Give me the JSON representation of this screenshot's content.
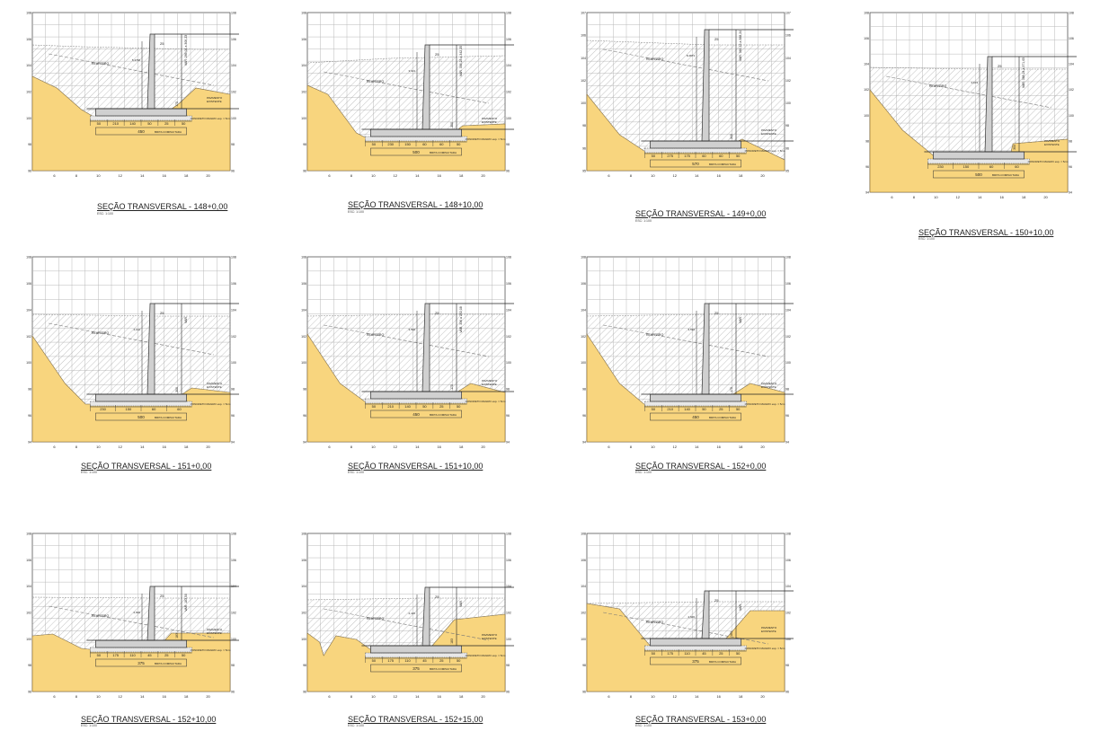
{
  "scale_note": "ESC: 1:100",
  "x_ticks": [
    "6",
    "8",
    "10",
    "12",
    "14",
    "16",
    "18",
    "20"
  ],
  "y_ticks": [
    "96",
    "98",
    "100",
    "102",
    "104",
    "106",
    "108"
  ],
  "y_ticks_low": [
    "94",
    "96",
    "98",
    "100",
    "102",
    "104",
    "106",
    "108"
  ],
  "y_ticks_149": [
    "95",
    "96",
    "98",
    "100",
    "102",
    "104",
    "106",
    "107"
  ],
  "labels": {
    "reaterro": "REATERRO",
    "concreto": "CONCRETO MAGRO esp. = 5cm",
    "brita": "BRITA COMPACTADA",
    "pavimento_1": "PAVIMENTO",
    "pavimento_2": "EXISTENTE",
    "var": "VAR."
  },
  "colors": {
    "soil": "#f8d57e",
    "grid": "#b9b9b9",
    "fill": "#d0d0d0"
  },
  "sections": [
    {
      "caption": "SEÇÃO TRANSVERSAL - 148+0,00",
      "dims": [
        "50",
        "210",
        "140",
        "50",
        "25",
        "50"
      ],
      "total": "450",
      "var": "VAR. 266,04 a 306,23",
      "wall": "25",
      "stem": "175",
      "stem_left": "5,4768"
    },
    {
      "caption": "SEÇÃO TRANSVERSAL - 148+10,00",
      "dims": [
        "50",
        "230",
        "150",
        "60",
        "60",
        "50"
      ],
      "total": "500",
      "var": "VAR. 306,23 a 342,25",
      "wall": "25",
      "stem": "300",
      "stem_left": "3,913"
    },
    {
      "caption": "SEÇÃO TRANSVERSAL - 149+0,00",
      "dims": [
        "50",
        "275",
        "175",
        "60",
        "60",
        "50"
      ],
      "total": "570",
      "var": "VAR. 360,13 a 388,24",
      "wall": "25",
      "stem": "340",
      "stem_left": "8,4873"
    },
    {
      "caption": "SEÇÃO TRANSVERSAL - 150+10,00",
      "dims": [
        "230",
        "150",
        "60",
        "60"
      ],
      "total": "500",
      "var": "VAR. 388,24 a 371,05",
      "wall": "25",
      "stem": "300",
      "stem_left": "4,103"
    },
    {
      "caption": "SEÇÃO TRANSVERSAL - 151+0,00",
      "dims": [
        "230",
        "150",
        "60",
        "60"
      ],
      "total": "500",
      "var": "VAR.",
      "wall": "25",
      "stem": "300",
      "stem_left": "4,102"
    },
    {
      "caption": "SEÇÃO TRANSVERSAL - 151+10,00",
      "dims": [
        "50",
        "210",
        "140",
        "50",
        "25",
        "50"
      ],
      "total": "450",
      "var": "VAR. 336 a 292,08",
      "wall": "25",
      "stem": "175",
      "stem_left": "3,596"
    },
    {
      "caption": "SEÇÃO TRANSVERSAL - 152+0,00",
      "dims": [
        "50",
        "210",
        "140",
        "50",
        "25",
        "50"
      ],
      "total": "450",
      "var": "VAR.",
      "wall": "25",
      "stem": "175",
      "stem_left": "3,596"
    },
    {
      "caption": "SEÇÃO TRANSVERSAL - 152+10,00",
      "dims": [
        "50",
        "175",
        "110",
        "45",
        "25",
        "50"
      ],
      "total": "375",
      "var": "VAR. 183,50",
      "wall": "25",
      "stem": "183",
      "stem_left": "2,606"
    },
    {
      "caption": "SEÇÃO TRANSVERSAL - 152+15,00",
      "dims": [
        "50",
        "175",
        "110",
        "45",
        "25",
        "50"
      ],
      "total": "375",
      "var": "VAR.",
      "wall": "25",
      "stem": "183",
      "stem_left": "2,415"
    },
    {
      "caption": "SEÇÃO TRANSVERSAL - 153+0,00",
      "dims": [
        "50",
        "175",
        "110",
        "45",
        "25",
        "50"
      ],
      "total": "375",
      "var": "VAR.",
      "wall": "25",
      "stem": "183",
      "stem_left": "2,606"
    }
  ]
}
